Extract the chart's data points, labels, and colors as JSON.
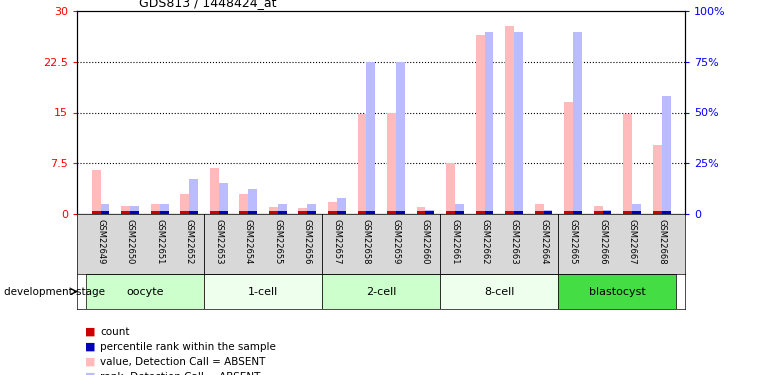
{
  "title": "GDS813 / 1448424_at",
  "samples": [
    "GSM22649",
    "GSM22650",
    "GSM22651",
    "GSM22652",
    "GSM22653",
    "GSM22654",
    "GSM22655",
    "GSM22656",
    "GSM22657",
    "GSM22658",
    "GSM22659",
    "GSM22660",
    "GSM22661",
    "GSM22662",
    "GSM22663",
    "GSM22664",
    "GSM22665",
    "GSM22666",
    "GSM22667",
    "GSM22668"
  ],
  "pink_values": [
    6.5,
    1.2,
    1.5,
    3.0,
    6.8,
    3.0,
    1.0,
    0.8,
    1.8,
    14.8,
    15.0,
    1.0,
    7.5,
    26.5,
    27.8,
    1.5,
    16.5,
    1.2,
    14.8,
    10.2
  ],
  "blue_pct": [
    5.0,
    4.0,
    5.0,
    17.0,
    15.0,
    12.0,
    5.0,
    5.0,
    8.0,
    75.0,
    75.0,
    2.0,
    5.0,
    90.0,
    90.0,
    2.0,
    90.0,
    2.0,
    5.0,
    58.0
  ],
  "red_count": [
    1,
    1,
    1,
    1,
    1,
    1,
    1,
    1,
    1,
    1,
    1,
    1,
    1,
    1,
    1,
    1,
    1,
    1,
    1,
    1
  ],
  "dark_blue_pct": [
    5.0,
    4.0,
    5.0,
    17.0,
    15.0,
    12.0,
    5.0,
    5.0,
    8.0,
    75.0,
    75.0,
    2.0,
    5.0,
    90.0,
    90.0,
    2.0,
    90.0,
    2.0,
    5.0,
    58.0
  ],
  "ylim_left": [
    0,
    30
  ],
  "ylim_right": [
    0,
    100
  ],
  "yticks_left": [
    0,
    7.5,
    15,
    22.5,
    30
  ],
  "yticks_right": [
    0,
    25,
    50,
    75,
    100
  ],
  "ytick_labels_left": [
    "0",
    "7.5",
    "15",
    "22.5",
    "30"
  ],
  "ytick_labels_right": [
    "0",
    "25%",
    "50%",
    "75%",
    "100%"
  ],
  "pink_color": "#ffbbbb",
  "blue_color": "#bbbbff",
  "red_color": "#cc0000",
  "dark_blue_color": "#0000bb",
  "bar_width": 0.3,
  "stages": [
    {
      "name": "oocyte",
      "start": 0,
      "end": 3,
      "color": "#ccffcc"
    },
    {
      "name": "1-cell",
      "start": 4,
      "end": 7,
      "color": "#eeffee"
    },
    {
      "name": "2-cell",
      "start": 8,
      "end": 11,
      "color": "#ccffcc"
    },
    {
      "name": "8-cell",
      "start": 12,
      "end": 15,
      "color": "#eeffee"
    },
    {
      "name": "blastocyst",
      "start": 16,
      "end": 19,
      "color": "#44dd44"
    }
  ],
  "legend_items": [
    {
      "color": "#cc0000",
      "label": "count"
    },
    {
      "color": "#0000bb",
      "label": "percentile rank within the sample"
    },
    {
      "color": "#ffbbbb",
      "label": "value, Detection Call = ABSENT"
    },
    {
      "color": "#bbbbff",
      "label": "rank, Detection Call = ABSENT"
    }
  ]
}
